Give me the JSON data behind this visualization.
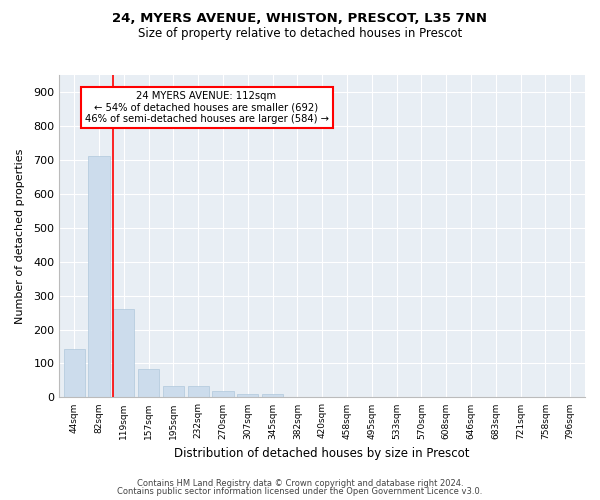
{
  "title1": "24, MYERS AVENUE, WHISTON, PRESCOT, L35 7NN",
  "title2": "Size of property relative to detached houses in Prescot",
  "xlabel": "Distribution of detached houses by size in Prescot",
  "ylabel": "Number of detached properties",
  "bar_color": "#ccdcec",
  "bar_edge_color": "#b0c8dc",
  "categories": [
    "44sqm",
    "82sqm",
    "119sqm",
    "157sqm",
    "195sqm",
    "232sqm",
    "270sqm",
    "307sqm",
    "345sqm",
    "382sqm",
    "420sqm",
    "458sqm",
    "495sqm",
    "533sqm",
    "570sqm",
    "608sqm",
    "646sqm",
    "683sqm",
    "721sqm",
    "758sqm",
    "796sqm"
  ],
  "values": [
    144,
    710,
    260,
    83,
    35,
    35,
    18,
    10,
    10,
    0,
    0,
    0,
    0,
    0,
    0,
    0,
    0,
    0,
    0,
    0,
    0
  ],
  "ylim": [
    0,
    950
  ],
  "yticks": [
    0,
    100,
    200,
    300,
    400,
    500,
    600,
    700,
    800,
    900
  ],
  "red_line_bin": 2,
  "annotation_text1": "24 MYERS AVENUE: 112sqm",
  "annotation_text2": "← 54% of detached houses are smaller (692)",
  "annotation_text3": "46% of semi-detached houses are larger (584) →",
  "footer1": "Contains HM Land Registry data © Crown copyright and database right 2024.",
  "footer2": "Contains public sector information licensed under the Open Government Licence v3.0.",
  "bg_color": "#e8eef4",
  "grid_color": "white"
}
